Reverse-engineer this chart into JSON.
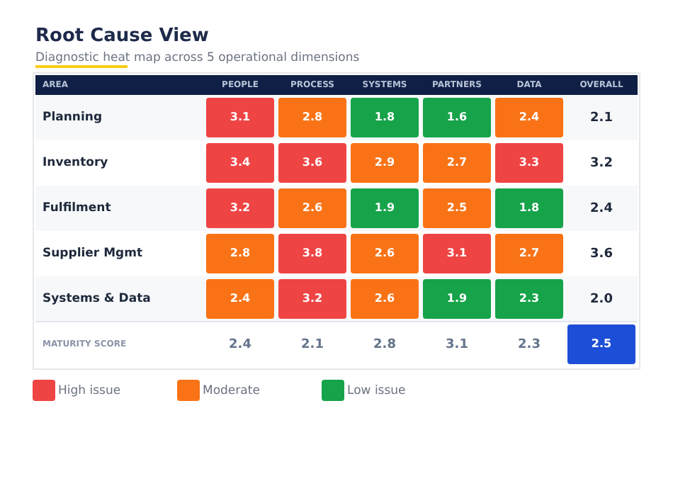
{
  "chart_data": {
    "type": "heatmap",
    "title": "Root Cause View",
    "subtitle": "Diagnostic heat map across 5 operational dimensions",
    "xlabel": "AREA",
    "categories": [
      "PEOPLE",
      "PROCESS",
      "SYSTEMS",
      "PARTNERS",
      "DATA",
      "OVERALL"
    ],
    "y_categories": [
      "Planning",
      "Inventory",
      "Fulfilment",
      "Supplier Mgmt",
      "Systems & Data",
      "MATURITY SCORE"
    ],
    "cells": [
      [
        3.1,
        2.8,
        1.8,
        1.6,
        2.4,
        2.1
      ],
      [
        3.4,
        3.6,
        2.9,
        2.7,
        3.3,
        3.2
      ],
      [
        3.2,
        2.6,
        1.9,
        2.5,
        1.8,
        2.4
      ],
      [
        2.8,
        3.8,
        2.6,
        3.1,
        2.7,
        3.6
      ],
      [
        2.4,
        3.2,
        2.6,
        1.9,
        2.3,
        2.0
      ],
      [
        2.4,
        2.1,
        2.8,
        3.1,
        2.3,
        2.5
      ]
    ],
    "colors": [
      [
        "#ef4444",
        "#f97316",
        "#16a34a",
        "#16a34a",
        "#f97316",
        null
      ],
      [
        "#ef4444",
        "#ef4444",
        "#f97316",
        "#f97316",
        "#ef4444",
        null
      ],
      [
        "#ef4444",
        "#f97316",
        "#16a34a",
        "#f97316",
        "#16a34a",
        null
      ],
      [
        "#f97316",
        "#ef4444",
        "#f97316",
        "#ef4444",
        "#f97316",
        null
      ],
      [
        "#f97316",
        "#ef4444",
        "#f97316",
        "#16a34a",
        "#16a34a",
        null
      ],
      [
        null,
        null,
        null,
        null,
        null,
        "#1d4ed8"
      ]
    ],
    "annotations": [
      "High issue",
      "Moderate",
      "Low issue"
    ],
    "cell_labels": [
      [
        "3.1",
        "2.8",
        "1.8",
        "1.6",
        "2.4",
        "2.1"
      ],
      [
        "3.4",
        "3.6",
        "2.9",
        "2.7",
        "3.3",
        "3.2"
      ],
      [
        "3.2",
        "2.6",
        "1.9",
        "2.5",
        "1.8",
        "2.4"
      ],
      [
        "2.8",
        "3.8",
        "2.6",
        "3.1",
        "2.7",
        "3.6"
      ],
      [
        "2.4",
        "3.2",
        "2.6",
        "1.9",
        "2.3",
        "2.0"
      ],
      [
        "2.4",
        "2.1",
        "2.8",
        "3.1",
        "2.3",
        "2.5"
      ]
    ],
    "data_labels": true
  }
}
